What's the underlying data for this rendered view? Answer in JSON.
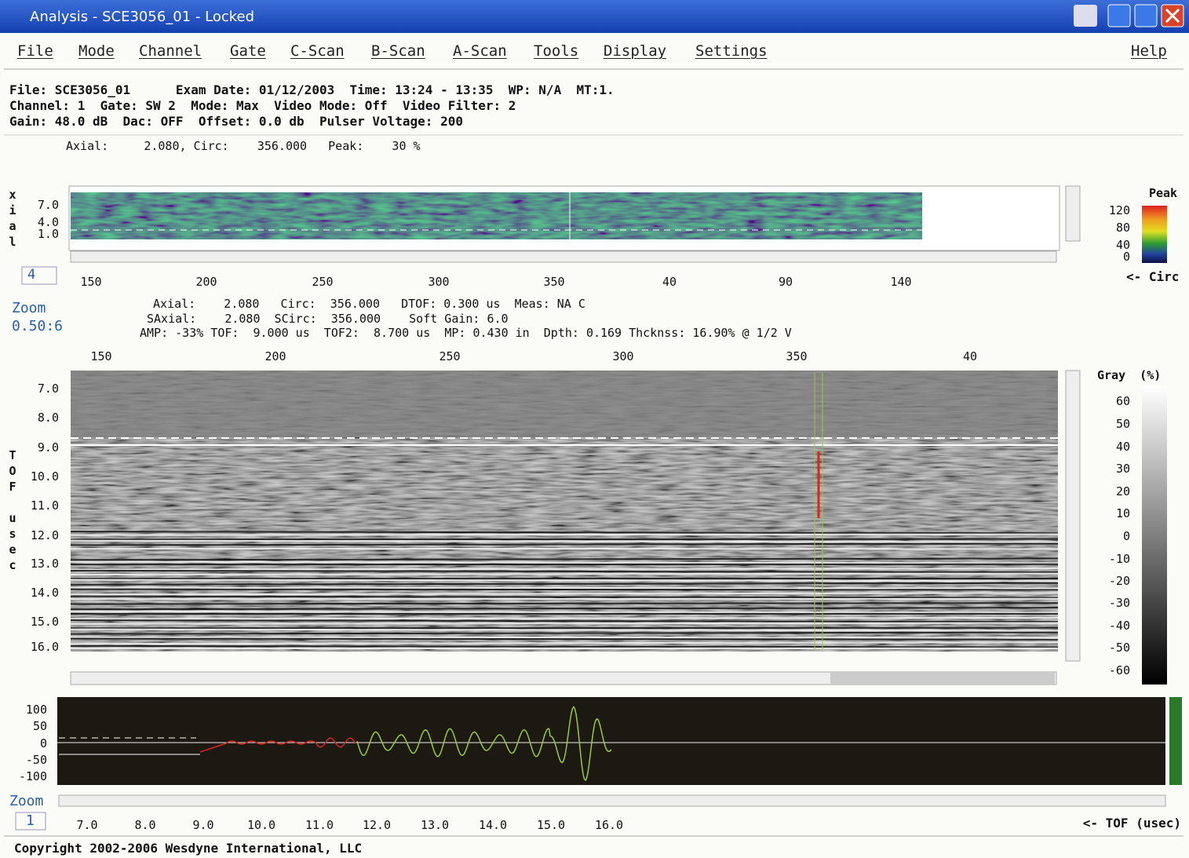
{
  "window": {
    "title": "Analysis - SCE3056_01 - Locked"
  },
  "menu": {
    "items": [
      "File",
      "Mode",
      "Channel",
      "Gate",
      "C-Scan",
      "B-Scan",
      "A-Scan",
      "Tools",
      "Display",
      "Settings"
    ],
    "help": "Help"
  },
  "info": {
    "lines": [
      "File: SCE3056_01      Exam Date: 01/12/2003  Time: 13:24 - 13:35  WP: N/A  MT:1.",
      "Channel: 1  Gate: SW 2  Mode: Max  Video Mode: Off  Video Filter: 2",
      "Gain: 48.0 dB  Dac: OFF  Offset: 0.0 db  Pulser Voltage: 200"
    ]
  },
  "cscan": {
    "readout": "Axial:     2.080, Circ:    356.000   Peak:    30 %",
    "axis_label": "xial",
    "yticks": [
      "7.0",
      "4.0",
      "1.0"
    ],
    "xticks": [
      "150",
      "200",
      "250",
      "300",
      "350",
      "40",
      "90",
      "140"
    ],
    "index": "4",
    "legend_title": "Peak",
    "legend_ticks": [
      "120",
      "80",
      "40",
      "0"
    ],
    "axis_hint": "<- Circ"
  },
  "zoom": {
    "label": "Zoom",
    "value": "0.50:6"
  },
  "bscan": {
    "readout": [
      "Axial:    2.080   Circ:  356.000   DTOF: 0.300 us  Meas: NA C",
      "SAxial:    2.080  SCirc:  356.000    Soft Gain: 6.0",
      "AMP: -33% TOF:  9.000 us  TOF2:  8.700 us  MP: 0.430 in  Dpth: 0.169 Thcknss: 16.90% @ 1/2 V"
    ],
    "xticks": [
      "150",
      "200",
      "250",
      "300",
      "350",
      "40"
    ],
    "yticks": [
      "7.0",
      "8.0",
      "9.0",
      "10.0",
      "11.0",
      "12.0",
      "13.0",
      "14.0",
      "15.0",
      "16.0"
    ],
    "axis_label_top": "TOF",
    "axis_label_bottom": "usec",
    "legend_title": "Gray  (%)",
    "legend_ticks": [
      "60",
      "50",
      "40",
      "30",
      "20",
      "10",
      "0",
      "-10",
      "-20",
      "-30",
      "-40",
      "-50",
      "-60"
    ]
  },
  "ascan": {
    "yticks": [
      "100",
      "50",
      "0",
      "-50",
      "-100"
    ],
    "xticks": [
      "7.0",
      "8.0",
      "9.0",
      "10.0",
      "11.0",
      "12.0",
      "13.0",
      "14.0",
      "15.0",
      "16.0"
    ],
    "zoom_label": "Zoom",
    "zoom_value": "1",
    "axis_hint": "<- TOF (usec)"
  },
  "status": "Copyright 2002-2006 Wesdyne International, LLC"
}
